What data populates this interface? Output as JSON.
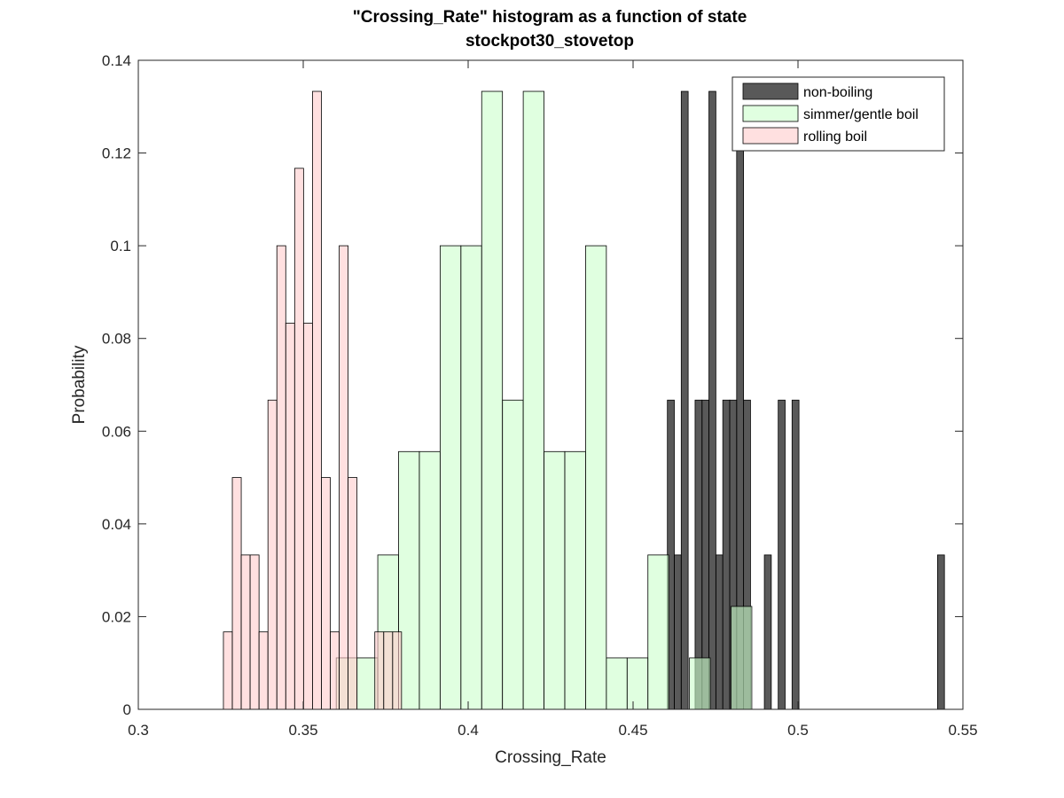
{
  "chart_data": {
    "type": "bar",
    "title": "\"Crossing_Rate\" histogram as a function of state",
    "subtitle": "stockpot30_stovetop",
    "xlabel": "Crossing_Rate",
    "ylabel": "Probability",
    "xlim": [
      0.3,
      0.55
    ],
    "ylim": [
      0,
      0.14
    ],
    "xticks": [
      "0.3",
      "0.35",
      "0.4",
      "0.45",
      "0.5",
      "0.55"
    ],
    "xtick_values": [
      0.3,
      0.35,
      0.4,
      0.45,
      0.5,
      0.55
    ],
    "yticks": [
      "0",
      "0.02",
      "0.04",
      "0.06",
      "0.08",
      "0.1",
      "0.12",
      "0.14"
    ],
    "ytick_values": [
      0,
      0.02,
      0.04,
      0.06,
      0.08,
      0.1,
      0.12,
      0.14
    ],
    "grid": false,
    "legend_position": "top-right",
    "series": [
      {
        "name": "non-boiling",
        "color": "#000000",
        "alpha": 0.65,
        "bin_edges": [
          0.4604,
          0.4625,
          0.4646,
          0.4667,
          0.4688,
          0.4709,
          0.473,
          0.4751,
          0.4772,
          0.4793,
          0.4814,
          0.4835,
          0.4856,
          0.4877,
          0.4898,
          0.4919,
          0.494,
          0.4961,
          0.4982,
          0.5003,
          0.5024,
          0.5045,
          0.5066,
          0.5087,
          0.5108,
          0.5129,
          0.515,
          0.5171,
          0.5192,
          0.5213,
          0.5234,
          0.5255,
          0.5276,
          0.5297,
          0.5318,
          0.5339,
          0.536,
          0.5381,
          0.5402,
          0.5423,
          0.5444
        ],
        "values": [
          0.0667,
          0.0333,
          0.1333,
          0,
          0.0667,
          0.0667,
          0.1333,
          0.0333,
          0.0667,
          0.0667,
          0.1333,
          0.0667,
          0,
          0,
          0.0333,
          0,
          0.0667,
          0,
          0.0667,
          0,
          0,
          0,
          0,
          0,
          0,
          0,
          0,
          0,
          0,
          0,
          0,
          0,
          0,
          0,
          0,
          0,
          0,
          0,
          0,
          0.0333
        ]
      },
      {
        "name": "simmer/gentle boil",
        "color": "#ccffcc",
        "alpha": 0.6,
        "bin_edges": [
          0.36,
          0.3663,
          0.3726,
          0.3789,
          0.3852,
          0.3915,
          0.3978,
          0.4041,
          0.4104,
          0.4167,
          0.423,
          0.4293,
          0.4356,
          0.4419,
          0.4482,
          0.4545,
          0.4608,
          0.4671,
          0.4734,
          0.4797,
          0.486
        ],
        "values": [
          0.0111,
          0.0111,
          0.0333,
          0.0556,
          0.0556,
          0.1,
          0.1,
          0.1333,
          0.0667,
          0.1333,
          0.0556,
          0.0556,
          0.1,
          0.0111,
          0.0111,
          0.0333,
          0,
          0.0111,
          0,
          0.0222
        ]
      },
      {
        "name": "rolling boil",
        "color": "#ffcccc",
        "alpha": 0.6,
        "bin_edges": [
          0.3258,
          0.3285,
          0.3312,
          0.3339,
          0.3366,
          0.3393,
          0.342,
          0.3447,
          0.3474,
          0.3501,
          0.3528,
          0.3555,
          0.3582,
          0.3609,
          0.3636,
          0.3663,
          0.369,
          0.3717,
          0.3744,
          0.3771,
          0.3798
        ],
        "values": [
          0.0167,
          0.05,
          0.0333,
          0.0333,
          0.0167,
          0.0667,
          0.1,
          0.0833,
          0.1167,
          0.0833,
          0.1333,
          0.05,
          0.0167,
          0.1,
          0.05,
          0,
          0,
          0.0167,
          0.0167,
          0.0167
        ]
      }
    ]
  }
}
